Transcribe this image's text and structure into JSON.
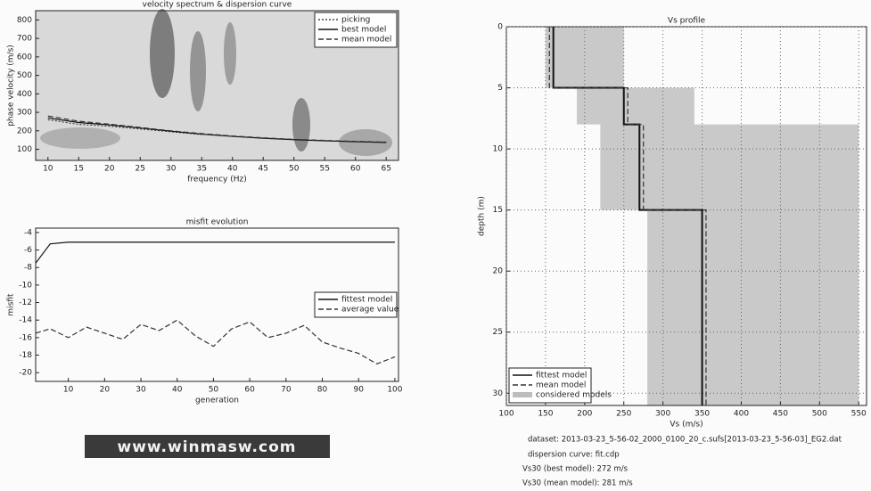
{
  "chart_data": [
    {
      "type": "line",
      "title": "velocity spectrum & dispersion curve",
      "xlabel": "frequency (Hz)",
      "ylabel": "phase velocity (m/s)",
      "x": [
        10,
        15,
        20,
        25,
        30,
        35,
        40,
        45,
        50,
        55,
        60,
        65
      ],
      "series": [
        {
          "name": "picking",
          "color": "#444444",
          "style": "dotted",
          "values": [
            260,
            235,
            225,
            210,
            195,
            180,
            null,
            null,
            null,
            null,
            null,
            null
          ]
        },
        {
          "name": "best model",
          "color": "#111111",
          "style": "solid",
          "values": [
            270,
            245,
            232,
            215,
            198,
            182,
            170,
            160,
            152,
            146,
            141,
            137
          ]
        },
        {
          "name": "mean model",
          "color": "#333333",
          "style": "dashed",
          "values": [
            280,
            252,
            236,
            218,
            200,
            185,
            172,
            162,
            154,
            148,
            143,
            139
          ]
        }
      ],
      "xlim": [
        8,
        67
      ],
      "ylim": [
        40,
        850
      ],
      "xticks": [
        10,
        15,
        20,
        25,
        30,
        35,
        40,
        45,
        50,
        55,
        60,
        65
      ],
      "yticks": [
        100,
        200,
        300,
        400,
        500,
        600,
        700,
        800
      ],
      "grid": false,
      "legend": "upper right"
    },
    {
      "type": "line",
      "title": "misfit evolution",
      "xlabel": "generation",
      "ylabel": "misfit",
      "x": [
        1,
        5,
        10,
        15,
        20,
        25,
        30,
        35,
        40,
        45,
        50,
        55,
        60,
        65,
        70,
        75,
        80,
        85,
        90,
        95,
        100
      ],
      "series": [
        {
          "name": "fittest model",
          "color": "#111111",
          "style": "solid",
          "values": [
            -7.5,
            -5.3,
            -5.1,
            -5.1,
            -5.1,
            -5.1,
            -5.1,
            -5.1,
            -5.1,
            -5.1,
            -5.1,
            -5.1,
            -5.1,
            -5.1,
            -5.1,
            -5.1,
            -5.1,
            -5.1,
            -5.1,
            -5.1,
            -5.1
          ]
        },
        {
          "name": "average value",
          "color": "#333333",
          "style": "dashed",
          "values": [
            -15.5,
            -15.0,
            -16.0,
            -14.8,
            -15.5,
            -16.2,
            -14.5,
            -15.2,
            -14.0,
            -15.8,
            -17.0,
            -15.0,
            -14.2,
            -16.0,
            -15.5,
            -14.6,
            -16.5,
            -17.2,
            -17.8,
            -19.0,
            -18.2
          ]
        }
      ],
      "xlim": [
        1,
        101
      ],
      "ylim": [
        -21,
        -3.5
      ],
      "xticks": [
        10,
        20,
        30,
        40,
        50,
        60,
        70,
        80,
        90,
        100
      ],
      "yticks": [
        -4,
        -6,
        -8,
        -10,
        -12,
        -14,
        -16,
        -18,
        -20
      ],
      "grid": false,
      "legend": "center right"
    },
    {
      "type": "profile",
      "title": "Vs profile",
      "xlabel": "Vs (m/s)",
      "ylabel": "depth (m)",
      "depth": [
        0,
        5,
        5,
        8,
        8,
        15,
        15,
        31
      ],
      "band": {
        "name": "considered models",
        "color": "#bdbdbd",
        "min": [
          150,
          150,
          190,
          190,
          220,
          220,
          280,
          280
        ],
        "max": [
          250,
          250,
          340,
          340,
          550,
          550,
          550,
          550
        ]
      },
      "series": [
        {
          "name": "fittest model",
          "color": "#111111",
          "style": "solid",
          "values": [
            160,
            160,
            250,
            250,
            270,
            270,
            350,
            350
          ]
        },
        {
          "name": "mean model",
          "color": "#333333",
          "style": "dashed",
          "values": [
            155,
            155,
            255,
            255,
            275,
            275,
            355,
            355
          ]
        }
      ],
      "xlim": [
        100,
        560
      ],
      "ylim": [
        0,
        31
      ],
      "y_inverted": true,
      "xticks": [
        100,
        150,
        200,
        250,
        300,
        350,
        400,
        450,
        500,
        550
      ],
      "yticks": [
        0,
        5,
        10,
        15,
        20,
        25,
        30
      ],
      "grid": true,
      "legend": "lower left"
    }
  ],
  "notes": {
    "dataset": "dataset: 2013-03-23_5-56-02_2000_0100_20_c.sufs[2013-03-23_5-56-03]_EG2.dat",
    "dispersion_curve": "dispersion curve: fit.cdp",
    "vs30_best": "Vs30 (best model): 272 m/s",
    "vs30_mean": "Vs30 (mean model): 281 m/s"
  },
  "logo": "www.winmasw.com"
}
